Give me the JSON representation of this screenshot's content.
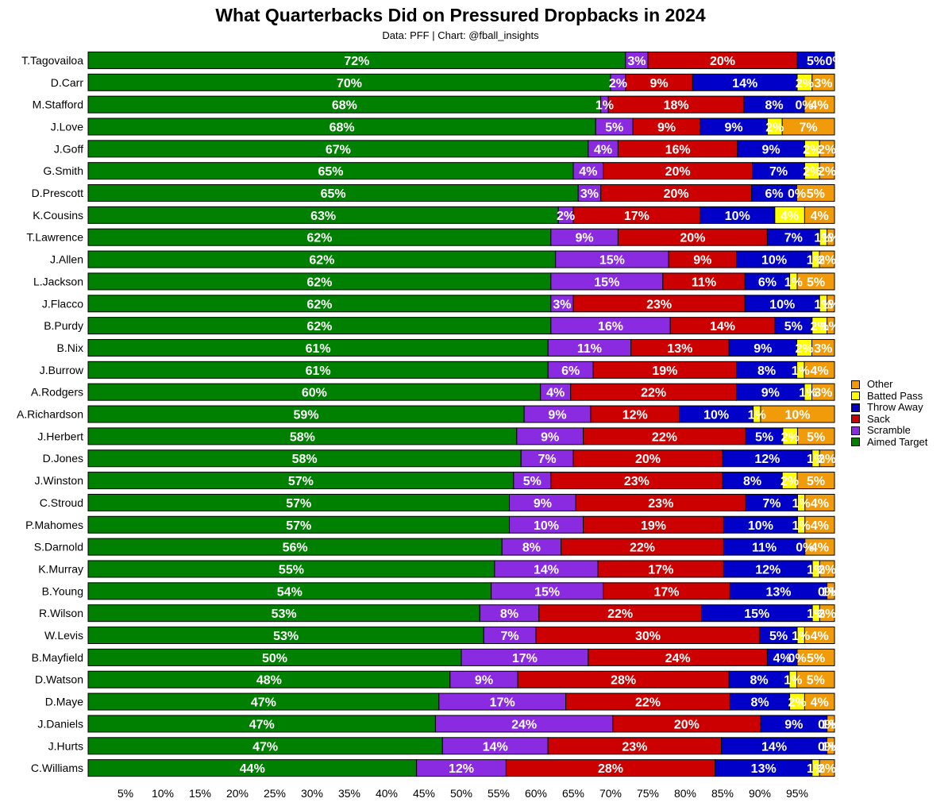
{
  "title": "What Quarterbacks Did on Pressured Dropbacks in 2024",
  "subtitle": "Data: PFF | Chart: @fball_insights",
  "chart_data": {
    "type": "bar",
    "orientation": "horizontal",
    "stacked": true,
    "normalized": true,
    "categories": [
      "T.Tagovailoa",
      "D.Carr",
      "M.Stafford",
      "J.Love",
      "J.Goff",
      "G.Smith",
      "D.Prescott",
      "K.Cousins",
      "T.Lawrence",
      "J.Allen",
      "L.Jackson",
      "J.Flacco",
      "B.Purdy",
      "B.Nix",
      "J.Burrow",
      "A.Rodgers",
      "A.Richardson",
      "J.Herbert",
      "D.Jones",
      "J.Winston",
      "C.Stroud",
      "P.Mahomes",
      "S.Darnold",
      "K.Murray",
      "B.Young",
      "R.Wilson",
      "W.Levis",
      "B.Mayfield",
      "D.Watson",
      "D.Maye",
      "J.Daniels",
      "J.Hurts",
      "C.Williams"
    ],
    "series": [
      {
        "name": "Aimed Target",
        "color": "#008000",
        "label_color": "#ffffff",
        "values": [
          72,
          70,
          68,
          68,
          67,
          65,
          65,
          63,
          62,
          62,
          62,
          62,
          62,
          61,
          61,
          60,
          59,
          58,
          58,
          57,
          57,
          57,
          56,
          55,
          54,
          53,
          53,
          50,
          48,
          47,
          47,
          47,
          44
        ],
        "labels": [
          "72%",
          "70%",
          "68%",
          "68%",
          "67%",
          "65%",
          "65%",
          "63%",
          "62%",
          "62%",
          "62%",
          "62%",
          "62%",
          "61%",
          "61%",
          "60%",
          "59%",
          "58%",
          "58%",
          "57%",
          "57%",
          "57%",
          "56%",
          "55%",
          "54%",
          "53%",
          "53%",
          "50%",
          "48%",
          "47%",
          "47%",
          "47%",
          "44%"
        ]
      },
      {
        "name": "Scramble",
        "color": "#8a2be2",
        "label_color": "#ffffff",
        "values": [
          3,
          2,
          1,
          5,
          4,
          4,
          3,
          2,
          9,
          15,
          15,
          3,
          16,
          11,
          6,
          4,
          9,
          9,
          7,
          5,
          9,
          10,
          8,
          14,
          15,
          8,
          7,
          17,
          9,
          17,
          24,
          14,
          12
        ],
        "labels": [
          "3%",
          "2%",
          "1%",
          "5%",
          "4%",
          "4%",
          "3%",
          "2%",
          "9%",
          "15%",
          "15%",
          "3%",
          "16%",
          "11%",
          "6%",
          "4%",
          "9%",
          "9%",
          "7%",
          "5%",
          "9%",
          "10%",
          "8%",
          "14%",
          "15%",
          "8%",
          "7%",
          "17%",
          "9%",
          "17%",
          "24%",
          "14%",
          "12%"
        ]
      },
      {
        "name": "Sack",
        "color": "#cc0000",
        "label_color": "#ffffff",
        "values": [
          20,
          9,
          18,
          9,
          16,
          20,
          20,
          17,
          20,
          9,
          11,
          23,
          14,
          13,
          19,
          22,
          12,
          22,
          20,
          23,
          23,
          19,
          22,
          17,
          17,
          22,
          30,
          24,
          28,
          22,
          20,
          23,
          28
        ],
        "labels": [
          "20%",
          "9%",
          "18%",
          "9%",
          "16%",
          "20%",
          "20%",
          "17%",
          "20%",
          "9%",
          "11%",
          "23%",
          "14%",
          "13%",
          "19%",
          "22%",
          "12%",
          "22%",
          "20%",
          "23%",
          "23%",
          "19%",
          "22%",
          "17%",
          "17%",
          "22%",
          "30%",
          "24%",
          "28%",
          "22%",
          "20%",
          "23%",
          "28%"
        ]
      },
      {
        "name": "Throw Away",
        "color": "#0000c8",
        "label_color": "#ffffff",
        "values": [
          5,
          14,
          8,
          9,
          9,
          7,
          6,
          10,
          7,
          10,
          6,
          10,
          5,
          9,
          8,
          9,
          10,
          5,
          12,
          8,
          7,
          10,
          11,
          12,
          13,
          15,
          5,
          4,
          8,
          8,
          9,
          14,
          13
        ],
        "labels": [
          "5%",
          "14%",
          "8%",
          "9%",
          "9%",
          "7%",
          "6%",
          "10%",
          "7%",
          "10%",
          "6%",
          "10%",
          "5%",
          "9%",
          "8%",
          "9%",
          "10%",
          "5%",
          "12%",
          "8%",
          "7%",
          "10%",
          "11%",
          "12%",
          "13%",
          "15%",
          "5%",
          "4%",
          "8%",
          "8%",
          "9%",
          "14%",
          "13%"
        ]
      },
      {
        "name": "Batted Pass",
        "color": "#ffff00",
        "label_color": "#ffffff",
        "values": [
          0,
          2,
          0,
          2,
          2,
          2,
          0,
          4,
          1,
          1,
          1,
          1,
          2,
          2,
          1,
          1,
          1,
          2,
          1,
          2,
          1,
          1,
          0,
          1,
          0,
          1,
          1,
          0,
          1,
          2,
          0,
          0,
          1
        ],
        "labels": [
          "0%",
          "2%",
          "0%",
          "2%",
          "2%",
          "2%",
          "0%",
          "4%",
          "1%",
          "1%",
          "1%",
          "1%",
          "2%",
          "2%",
          "1%",
          "1%",
          "1%",
          "2%",
          "1%",
          "2%",
          "1%",
          "1%",
          "0%",
          "1%",
          "0%",
          "1%",
          "1%",
          "0%",
          "1%",
          "2%",
          "0%",
          "0%",
          "1%"
        ]
      },
      {
        "name": "Other",
        "color": "#f29b0a",
        "label_color": "#ffffff",
        "values": [
          0,
          3,
          4,
          7,
          2,
          2,
          5,
          4,
          1,
          2,
          5,
          1,
          1,
          3,
          4,
          3,
          10,
          5,
          2,
          5,
          4,
          4,
          4,
          2,
          1,
          2,
          4,
          5,
          5,
          4,
          1,
          1,
          2
        ],
        "labels": [
          "",
          "3%",
          "4%",
          "7%",
          "2%",
          "2%",
          "5%",
          "4%",
          "1%",
          "2%",
          "5%",
          "1%",
          "1%",
          "3%",
          "4%",
          "3%",
          "10%",
          "5%",
          "2%",
          "5%",
          "4%",
          "4%",
          "4%",
          "2%",
          "1%",
          "2%",
          "4%",
          "5%",
          "5%",
          "4%",
          "1%",
          "1%",
          "2%"
        ]
      }
    ],
    "xlim": [
      0,
      100
    ],
    "xticks": [
      5,
      10,
      15,
      20,
      25,
      30,
      35,
      40,
      45,
      50,
      55,
      60,
      65,
      70,
      75,
      80,
      85,
      90,
      95
    ],
    "xtick_labels": [
      "5%",
      "10%",
      "15%",
      "20%",
      "25%",
      "30%",
      "35%",
      "40%",
      "45%",
      "50%",
      "55%",
      "60%",
      "65%",
      "70%",
      "75%",
      "80%",
      "85%",
      "90%",
      "95%"
    ],
    "xlabel": "",
    "ylabel": "",
    "legend": {
      "position": "right",
      "entries": [
        {
          "name": "Other",
          "color": "#f29b0a"
        },
        {
          "name": "Batted Pass",
          "color": "#ffff00"
        },
        {
          "name": "Throw Away",
          "color": "#0000c8"
        },
        {
          "name": "Sack",
          "color": "#cc0000"
        },
        {
          "name": "Scramble",
          "color": "#8a2be2"
        },
        {
          "name": "Aimed Target",
          "color": "#008000"
        }
      ]
    },
    "grid": false
  }
}
